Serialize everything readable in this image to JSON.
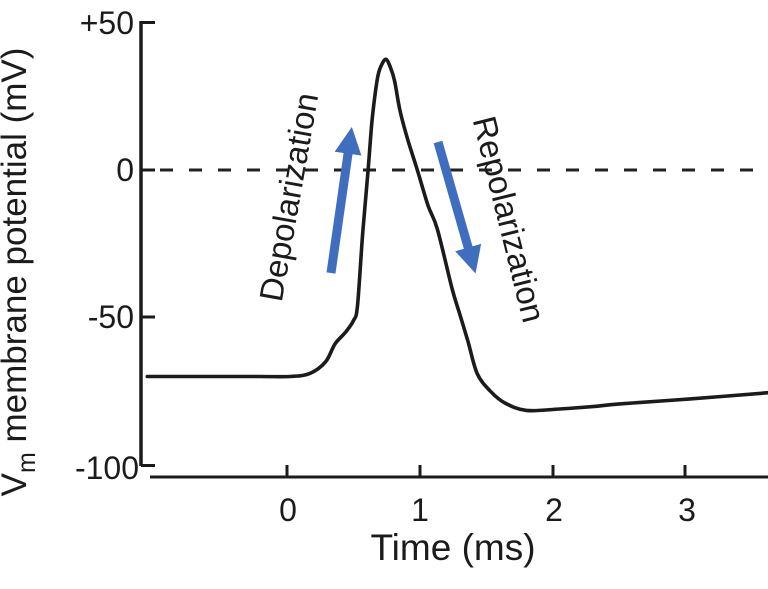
{
  "axes": {
    "y_label": {
      "symbol": "V",
      "subscript": "m",
      "rest": " membrane potential (mV)"
    },
    "x_label": "Time (ms)",
    "y_ticks": [
      "+50",
      "0",
      "-50",
      "-100"
    ],
    "x_ticks": [
      "0",
      "1",
      "2",
      "3"
    ]
  },
  "annotations": {
    "depolarization": {
      "label": "Depolarization"
    },
    "repolarization": {
      "label": "Repolarization"
    }
  },
  "colors": {
    "annotation_blue": "#3E6EBD",
    "curve_black": "#1b1b1b"
  },
  "chart_data": {
    "type": "line",
    "title": "",
    "xlabel": "Time (ms)",
    "ylabel": "Vm membrane potential (mV)",
    "xlim": [
      -1.05,
      3.62
    ],
    "ylim": [
      -100,
      50
    ],
    "x_ticks": [
      0,
      1,
      2,
      3
    ],
    "y_ticks": [
      -100,
      -50,
      0,
      50
    ],
    "grid": false,
    "reference_line": {
      "y": 0,
      "style": "dashed"
    },
    "series": [
      {
        "name": "membrane potential (mV)",
        "points": [
          [
            -1.05,
            -70
          ],
          [
            -0.8,
            -70
          ],
          [
            -0.5,
            -70
          ],
          [
            -0.2,
            -70
          ],
          [
            0.02,
            -70
          ],
          [
            0.17,
            -69
          ],
          [
            0.29,
            -65
          ],
          [
            0.36,
            -59
          ],
          [
            0.44,
            -55
          ],
          [
            0.5,
            -51
          ],
          [
            0.53,
            -46
          ],
          [
            0.57,
            -21
          ],
          [
            0.61,
            0
          ],
          [
            0.64,
            17
          ],
          [
            0.68,
            31
          ],
          [
            0.71,
            35.5
          ],
          [
            0.745,
            37.5
          ],
          [
            0.78,
            34.5
          ],
          [
            0.81,
            30
          ],
          [
            0.85,
            20
          ],
          [
            0.91,
            10
          ],
          [
            0.98,
            0
          ],
          [
            1.06,
            -12
          ],
          [
            1.13,
            -20
          ],
          [
            1.24,
            -40
          ],
          [
            1.3,
            -49
          ],
          [
            1.36,
            -58
          ],
          [
            1.43,
            -69
          ],
          [
            1.53,
            -75
          ],
          [
            1.64,
            -79
          ],
          [
            1.8,
            -81.5
          ],
          [
            2.05,
            -81
          ],
          [
            2.3,
            -80.2
          ],
          [
            2.5,
            -79.3
          ],
          [
            3.03,
            -77.6
          ],
          [
            3.62,
            -75.5
          ]
        ]
      }
    ],
    "annotations": [
      {
        "text": "Depolarization",
        "phase": "rising",
        "arrow_direction": "up",
        "color": "#3E6EBD"
      },
      {
        "text": "Repolarization",
        "phase": "falling",
        "arrow_direction": "down",
        "color": "#3E6EBD"
      }
    ],
    "key_values": {
      "resting_potential_mV": -70,
      "peak_mV": 37.5,
      "peak_time_ms": 0.75,
      "afterhyperpolarization_min_mV": -81.5,
      "zero_crossing_rising_ms": 0.61,
      "zero_crossing_falling_ms": 0.98
    }
  }
}
